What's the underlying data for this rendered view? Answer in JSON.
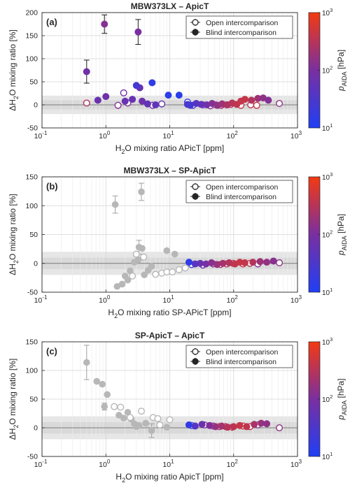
{
  "colors": {
    "grey_marker": "#b7b7b7",
    "band": "#e6e6e6",
    "cmap_low": "#1f3ff5",
    "cmap_mid": "#7a2fa0",
    "cmap_high": "#f33a12"
  },
  "colorbar": {
    "label_main": "p",
    "label_sub": "AIDA",
    "label_unit": " [hPa]",
    "ticks": [
      {
        "base": "10",
        "exp": "1"
      },
      {
        "base": "10",
        "exp": "2"
      },
      {
        "base": "10",
        "exp": "3"
      }
    ]
  },
  "legend": {
    "open": "Open intercomparison",
    "blind": "Blind intercomparison"
  },
  "chart_data": [
    {
      "type": "scatter",
      "panel": "(a)",
      "title": "MBW373LX – ApicT",
      "xlabel_pre": "H",
      "xlabel_sub": "2",
      "xlabel_post": "O mixing ratio APicT [ppm]",
      "ylabel_pre": "ΔH",
      "ylabel_sub": "2",
      "ylabel_post": "O mixing ratio [%]",
      "xscale": "log",
      "xlim": [
        0.1,
        1000
      ],
      "ylim": [
        -50,
        200
      ],
      "yticks": [
        -50,
        0,
        50,
        100,
        150,
        200
      ],
      "xticks": [
        {
          "exp": "-1"
        },
        {
          "exp": "0"
        },
        {
          "exp": "1"
        },
        {
          "exp": "2"
        },
        {
          "exp": "3"
        }
      ],
      "band": [
        -20,
        20
      ],
      "legend_position": "top-right",
      "blind_points": [
        {
          "x": 0.5,
          "y": 72,
          "err": 25,
          "p": 80
        },
        {
          "x": 0.95,
          "y": 175,
          "err": 20,
          "p": 120
        },
        {
          "x": 3.2,
          "y": 158,
          "err": 27,
          "p": 100
        },
        {
          "x": 3.4,
          "y": 37,
          "p": 60
        },
        {
          "x": 3.0,
          "y": 42,
          "p": 25
        },
        {
          "x": 5.3,
          "y": 48,
          "p": 15
        },
        {
          "x": 9.5,
          "y": 21,
          "p": 14
        },
        {
          "x": 14.0,
          "y": 21,
          "p": 13
        },
        {
          "x": 0.75,
          "y": 10,
          "p": 70
        },
        {
          "x": 1.0,
          "y": 18,
          "p": 75
        },
        {
          "x": 2.0,
          "y": 8,
          "p": 65
        },
        {
          "x": 2.6,
          "y": 12,
          "p": 60
        },
        {
          "x": 3.7,
          "y": 8,
          "p": 70
        },
        {
          "x": 4.5,
          "y": 2,
          "p": 55
        },
        {
          "x": 6.0,
          "y": 0,
          "p": 50
        },
        {
          "x": 19.0,
          "y": 1,
          "p": 30
        },
        {
          "x": 21.0,
          "y": -1,
          "p": 25
        },
        {
          "x": 26.0,
          "y": 3,
          "p": 40
        },
        {
          "x": 31.0,
          "y": 1,
          "p": 50
        },
        {
          "x": 38.0,
          "y": 0,
          "p": 80
        },
        {
          "x": 46.0,
          "y": 3,
          "p": 120
        },
        {
          "x": 56.0,
          "y": -1,
          "p": 150
        },
        {
          "x": 66.0,
          "y": 2,
          "p": 200
        },
        {
          "x": 80.0,
          "y": 0,
          "p": 260
        },
        {
          "x": 95.0,
          "y": 4,
          "p": 320
        },
        {
          "x": 112.0,
          "y": 1,
          "p": 380
        },
        {
          "x": 130.0,
          "y": 8,
          "p": 400
        },
        {
          "x": 150.0,
          "y": 12,
          "p": 420
        },
        {
          "x": 190.0,
          "y": 10,
          "p": 300
        },
        {
          "x": 240.0,
          "y": 14,
          "p": 200
        },
        {
          "x": 290.0,
          "y": 15,
          "p": 150
        },
        {
          "x": 350.0,
          "y": 10,
          "p": 120
        }
      ],
      "open_points": [
        {
          "x": 0.5,
          "y": 4,
          "p": 300
        },
        {
          "x": 1.55,
          "y": -1,
          "p": 120
        },
        {
          "x": 1.9,
          "y": 26,
          "p": 80
        },
        {
          "x": 2.2,
          "y": 4,
          "p": 110
        },
        {
          "x": 5.4,
          "y": -1,
          "p": 90
        },
        {
          "x": 7.5,
          "y": 2,
          "p": 60
        },
        {
          "x": 19.0,
          "y": 6,
          "p": 15
        },
        {
          "x": 23.0,
          "y": -1,
          "p": 40
        },
        {
          "x": 33.0,
          "y": 0,
          "p": 60
        },
        {
          "x": 43.0,
          "y": -2,
          "p": 120
        },
        {
          "x": 52.0,
          "y": 0,
          "p": 180
        },
        {
          "x": 64.0,
          "y": -1,
          "p": 240
        },
        {
          "x": 78.0,
          "y": 0,
          "p": 300
        },
        {
          "x": 90.0,
          "y": 1,
          "p": 280
        },
        {
          "x": 130.0,
          "y": -1,
          "p": 400
        },
        {
          "x": 185.0,
          "y": 0,
          "p": 350
        },
        {
          "x": 230.0,
          "y": -1,
          "p": 450
        },
        {
          "x": 520.0,
          "y": 3,
          "p": 150
        }
      ]
    },
    {
      "type": "scatter",
      "panel": "(b)",
      "title": "MBW373LX – SP-ApicT",
      "xlabel_pre": "H",
      "xlabel_sub": "2",
      "xlabel_post": "O mixing ratio SP-APicT [ppm]",
      "ylabel_pre": "ΔH",
      "ylabel_sub": "2",
      "ylabel_post": "O mixing ratio [%]",
      "xscale": "log",
      "xlim": [
        0.1,
        1000
      ],
      "ylim": [
        -50,
        150
      ],
      "yticks": [
        -50,
        0,
        50,
        100,
        150
      ],
      "xticks": [
        {
          "exp": "-1"
        },
        {
          "exp": "0"
        },
        {
          "exp": "1"
        },
        {
          "exp": "2"
        },
        {
          "exp": "3"
        }
      ],
      "band": [
        -20,
        20
      ],
      "legend_position": "top-right",
      "grey_blind": [
        {
          "x": 1.4,
          "y": 102,
          "err": 15
        },
        {
          "x": 3.6,
          "y": 124,
          "err": 15
        },
        {
          "x": 3.3,
          "y": 28,
          "err": 12
        },
        {
          "x": 3.7,
          "y": 26
        },
        {
          "x": 1.5,
          "y": -40
        },
        {
          "x": 1.8,
          "y": -36
        },
        {
          "x": 2.0,
          "y": -22
        },
        {
          "x": 2.4,
          "y": -13
        },
        {
          "x": 2.8,
          "y": 2
        },
        {
          "x": 3.2,
          "y": 6
        },
        {
          "x": 4.0,
          "y": -20
        },
        {
          "x": 4.6,
          "y": -12
        },
        {
          "x": 5.2,
          "y": -5
        },
        {
          "x": 9.0,
          "y": 22
        },
        {
          "x": 12.0,
          "y": 16
        },
        {
          "x": 2.2,
          "y": -29
        }
      ],
      "grey_open": [
        {
          "x": 2.6,
          "y": -22
        },
        {
          "x": 3.0,
          "y": 16
        },
        {
          "x": 3.9,
          "y": 11
        },
        {
          "x": 6.0,
          "y": -19
        },
        {
          "x": 7.5,
          "y": -17
        },
        {
          "x": 9.0,
          "y": -15
        },
        {
          "x": 11.0,
          "y": -15
        },
        {
          "x": 14.0,
          "y": -11
        },
        {
          "x": 17.5,
          "y": -8
        }
      ],
      "blind_points": [
        {
          "x": 20.0,
          "y": 2,
          "p": 15
        },
        {
          "x": 25.0,
          "y": -1,
          "p": 40
        },
        {
          "x": 30.0,
          "y": 0,
          "p": 60
        },
        {
          "x": 37.0,
          "y": -1,
          "p": 90
        },
        {
          "x": 45.0,
          "y": 1,
          "p": 130
        },
        {
          "x": 55.0,
          "y": -2,
          "p": 180
        },
        {
          "x": 68.0,
          "y": 0,
          "p": 230
        },
        {
          "x": 85.0,
          "y": 1,
          "p": 300
        },
        {
          "x": 105.0,
          "y": -1,
          "p": 380
        },
        {
          "x": 125.0,
          "y": 2,
          "p": 420
        },
        {
          "x": 150.0,
          "y": 1,
          "p": 400
        },
        {
          "x": 200.0,
          "y": 2,
          "p": 300
        },
        {
          "x": 260.0,
          "y": 3,
          "p": 200
        },
        {
          "x": 330.0,
          "y": 2,
          "p": 160
        },
        {
          "x": 420.0,
          "y": 4,
          "p": 130
        }
      ],
      "open_points": [
        {
          "x": 22.0,
          "y": -2,
          "p": 25
        },
        {
          "x": 33.0,
          "y": -3,
          "p": 70
        },
        {
          "x": 48.0,
          "y": -1,
          "p": 150
        },
        {
          "x": 62.0,
          "y": -2,
          "p": 220
        },
        {
          "x": 78.0,
          "y": -1,
          "p": 300
        },
        {
          "x": 98.0,
          "y": 0,
          "p": 350
        },
        {
          "x": 140.0,
          "y": -1,
          "p": 400
        },
        {
          "x": 180.0,
          "y": 0,
          "p": 350
        },
        {
          "x": 240.0,
          "y": -1,
          "p": 100
        },
        {
          "x": 520.0,
          "y": 1,
          "p": 150
        }
      ]
    },
    {
      "type": "scatter",
      "panel": "(c)",
      "title": "SP-ApicT – ApicT",
      "xlabel_pre": "H",
      "xlabel_sub": "2",
      "xlabel_post": "O mixing ratio ApicT [ppm]",
      "ylabel_pre": "ΔH",
      "ylabel_sub": "2",
      "ylabel_post": "O mixing ratio [%]",
      "xscale": "log",
      "xlim": [
        0.1,
        1000
      ],
      "ylim": [
        -50,
        150
      ],
      "yticks": [
        -50,
        0,
        50,
        100,
        150
      ],
      "xticks": [
        {
          "exp": "-1"
        },
        {
          "exp": "0"
        },
        {
          "exp": "1"
        },
        {
          "exp": "2"
        },
        {
          "exp": "3"
        }
      ],
      "band": [
        -20,
        20
      ],
      "legend_position": "top-right",
      "grey_blind": [
        {
          "x": 0.5,
          "y": 114,
          "err": 30
        },
        {
          "x": 0.72,
          "y": 81
        },
        {
          "x": 0.88,
          "y": 76
        },
        {
          "x": 0.95,
          "y": 37,
          "err": 6
        },
        {
          "x": 1.05,
          "y": 58
        },
        {
          "x": 1.6,
          "y": 22
        },
        {
          "x": 1.9,
          "y": 17
        },
        {
          "x": 2.2,
          "y": 27
        },
        {
          "x": 2.5,
          "y": 15
        },
        {
          "x": 2.8,
          "y": 7
        },
        {
          "x": 3.0,
          "y": 2
        },
        {
          "x": 3.3,
          "y": 4
        },
        {
          "x": 4.2,
          "y": 8
        },
        {
          "x": 5.2,
          "y": -5,
          "err": 12
        },
        {
          "x": 9.0,
          "y": 1
        }
      ],
      "grey_open": [
        {
          "x": 1.35,
          "y": 37
        },
        {
          "x": 1.7,
          "y": 36
        },
        {
          "x": 2.4,
          "y": 18
        },
        {
          "x": 3.6,
          "y": 29
        },
        {
          "x": 5.5,
          "y": 18
        },
        {
          "x": 6.5,
          "y": 16
        },
        {
          "x": 10.0,
          "y": 14
        },
        {
          "x": 7.0,
          "y": 5
        }
      ],
      "blind_points": [
        {
          "x": 20.0,
          "y": 5,
          "p": 15
        },
        {
          "x": 25.0,
          "y": 3,
          "p": 40
        },
        {
          "x": 32.0,
          "y": 6,
          "p": 70
        },
        {
          "x": 42.0,
          "y": 4,
          "p": 110
        },
        {
          "x": 52.0,
          "y": 2,
          "p": 170
        },
        {
          "x": 65.0,
          "y": 3,
          "p": 230
        },
        {
          "x": 80.0,
          "y": 1,
          "p": 300
        },
        {
          "x": 100.0,
          "y": 2,
          "p": 360
        },
        {
          "x": 125.0,
          "y": 4,
          "p": 420
        },
        {
          "x": 160.0,
          "y": 2,
          "p": 380
        },
        {
          "x": 210.0,
          "y": 6,
          "p": 250
        },
        {
          "x": 270.0,
          "y": 8,
          "p": 180
        },
        {
          "x": 330.0,
          "y": 7,
          "p": 150
        }
      ],
      "open_points": [
        {
          "x": 22.0,
          "y": 4,
          "p": 20
        },
        {
          "x": 35.0,
          "y": 5,
          "p": 80
        },
        {
          "x": 48.0,
          "y": 3,
          "p": 150
        },
        {
          "x": 60.0,
          "y": 2,
          "p": 210
        },
        {
          "x": 75.0,
          "y": 2,
          "p": 290
        },
        {
          "x": 95.0,
          "y": 1,
          "p": 340
        },
        {
          "x": 140.0,
          "y": 3,
          "p": 400
        },
        {
          "x": 180.0,
          "y": 2,
          "p": 350
        },
        {
          "x": 240.0,
          "y": 5,
          "p": 120
        },
        {
          "x": 520.0,
          "y": 0,
          "p": 150
        }
      ]
    }
  ]
}
